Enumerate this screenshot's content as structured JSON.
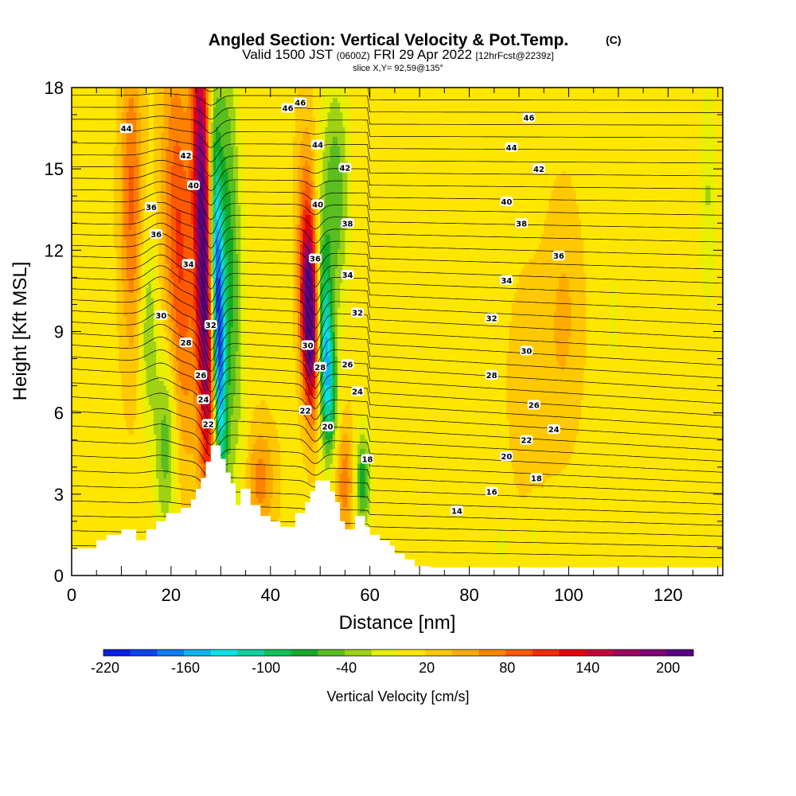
{
  "header": {
    "title_main": "Angled Section: Vertical Velocity & Pot.Temp.",
    "title_mark": "(C)",
    "subtitle_a": "Valid 1500 JST",
    "subtitle_b": "(0600Z)",
    "subtitle_c": "FRI 29 Apr 2022",
    "subtitle_d": "[12hrFcst@2239z]",
    "slice_line": "slice X,Y= 92,59@135°"
  },
  "chart_data": {
    "type": "heatmap",
    "xlabel": "Distance [nm]",
    "ylabel": "Height [Kft MSL]",
    "xlim": [
      0,
      131
    ],
    "ylim": [
      0,
      18
    ],
    "x_ticks": [
      0,
      20,
      40,
      60,
      80,
      100,
      120
    ],
    "y_ticks": [
      0,
      3,
      6,
      9,
      12,
      15,
      18
    ],
    "grid": false,
    "colorbar": {
      "label": "Vertical Velocity [cm/s]",
      "tick_labels": [
        "-220",
        "-160",
        "-100",
        "-40",
        "20",
        "80",
        "140",
        "200"
      ],
      "tick_values": [
        -220,
        -160,
        -100,
        -40,
        20,
        80,
        140,
        200
      ],
      "colors": [
        "#0a1ee6",
        "#0a46f0",
        "#0a7ef5",
        "#0ab4f5",
        "#0ae1e6",
        "#0ad2a0",
        "#0ac35a",
        "#14aa28",
        "#5abe1e",
        "#a0d214",
        "#e6f000",
        "#ffe600",
        "#ffc800",
        "#ffaa00",
        "#ff8200",
        "#ff5a00",
        "#f52d00",
        "#e6000a",
        "#c8003c",
        "#a00064",
        "#820078",
        "#5a0082"
      ]
    },
    "contour_labels": [
      {
        "x": 46,
        "y": 17.45,
        "text": "46"
      },
      {
        "x": 11,
        "y": 16.5,
        "text": "44"
      },
      {
        "x": 23,
        "y": 15.5,
        "text": "42"
      },
      {
        "x": 24.5,
        "y": 14.4,
        "text": "40"
      },
      {
        "x": 16,
        "y": 13.6,
        "text": "36"
      },
      {
        "x": 17,
        "y": 12.6,
        "text": "36"
      },
      {
        "x": 23.5,
        "y": 11.5,
        "text": "34"
      },
      {
        "x": 18,
        "y": 9.6,
        "text": "30"
      },
      {
        "x": 23,
        "y": 8.6,
        "text": "28"
      },
      {
        "x": 28,
        "y": 9.25,
        "text": "32"
      },
      {
        "x": 26,
        "y": 7.4,
        "text": "26"
      },
      {
        "x": 26.5,
        "y": 6.5,
        "text": "24"
      },
      {
        "x": 27.5,
        "y": 5.6,
        "text": "22"
      },
      {
        "x": 43.5,
        "y": 17.25,
        "text": "46"
      },
      {
        "x": 49.5,
        "y": 15.9,
        "text": "44"
      },
      {
        "x": 55,
        "y": 15.05,
        "text": "42"
      },
      {
        "x": 49.5,
        "y": 13.7,
        "text": "40"
      },
      {
        "x": 55.5,
        "y": 13.0,
        "text": "38"
      },
      {
        "x": 49,
        "y": 11.7,
        "text": "36"
      },
      {
        "x": 55.5,
        "y": 11.1,
        "text": "34"
      },
      {
        "x": 57.5,
        "y": 9.7,
        "text": "32"
      },
      {
        "x": 47.5,
        "y": 8.5,
        "text": "30"
      },
      {
        "x": 50,
        "y": 7.7,
        "text": "28"
      },
      {
        "x": 55.5,
        "y": 7.8,
        "text": "26"
      },
      {
        "x": 57.5,
        "y": 6.8,
        "text": "24"
      },
      {
        "x": 47,
        "y": 6.1,
        "text": "22"
      },
      {
        "x": 51.5,
        "y": 5.5,
        "text": "20"
      },
      {
        "x": 59.5,
        "y": 4.3,
        "text": "18"
      },
      {
        "x": 92,
        "y": 16.9,
        "text": "46"
      },
      {
        "x": 88.5,
        "y": 15.8,
        "text": "44"
      },
      {
        "x": 94,
        "y": 15.0,
        "text": "42"
      },
      {
        "x": 87.5,
        "y": 13.8,
        "text": "40"
      },
      {
        "x": 90.5,
        "y": 13.0,
        "text": "38"
      },
      {
        "x": 98,
        "y": 11.8,
        "text": "36"
      },
      {
        "x": 87.5,
        "y": 10.9,
        "text": "34"
      },
      {
        "x": 84.5,
        "y": 9.5,
        "text": "32"
      },
      {
        "x": 91.5,
        "y": 8.3,
        "text": "30"
      },
      {
        "x": 84.5,
        "y": 7.4,
        "text": "28"
      },
      {
        "x": 93,
        "y": 6.3,
        "text": "26"
      },
      {
        "x": 97,
        "y": 5.4,
        "text": "24"
      },
      {
        "x": 91.5,
        "y": 5.0,
        "text": "22"
      },
      {
        "x": 87.5,
        "y": 4.4,
        "text": "20"
      },
      {
        "x": 93.5,
        "y": 3.6,
        "text": "18"
      },
      {
        "x": 84.5,
        "y": 3.1,
        "text": "16"
      },
      {
        "x": 77.5,
        "y": 2.4,
        "text": "14"
      }
    ]
  }
}
